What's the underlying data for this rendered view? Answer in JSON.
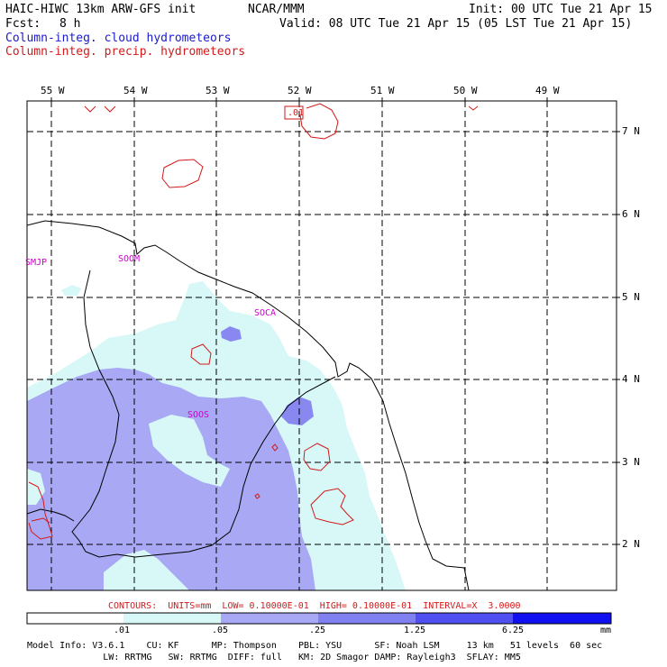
{
  "header": {
    "title": "HAIC-HIWC 13km ARW-GFS init",
    "org": "NCAR/MMM",
    "init": "Init: 00 UTC Tue 21 Apr 15",
    "fcst_label": "Fcst:",
    "fcst_value": "8 h",
    "valid": "Valid: 08 UTC Tue 21 Apr 15 (05 LST Tue 21 Apr 15)",
    "field1": "Column-integ. cloud hydrometeors",
    "field2": "Column-integ. precip. hydrometeors"
  },
  "axes": {
    "lon_labels": [
      "55 W",
      "54 W",
      "53 W",
      "52 W",
      "51 W",
      "50 W",
      "49 W"
    ],
    "lat_labels": [
      "7 N",
      "6 N",
      "5 N",
      "4 N",
      "3 N",
      "2 N"
    ]
  },
  "stations": [
    "SMJP",
    "SOOM",
    "SOCA",
    "SOOS"
  ],
  "contour_label": ".01",
  "contours_info": "CONTOURS:  UNITS=mm  LOW= 0.10000E-01  HIGH= 0.10000E-01  INTERVAL=X  3.0000",
  "colorbar": {
    "ticks": [
      ".01",
      ".05",
      ".25",
      "1.25",
      "6.25"
    ],
    "unit": "mm",
    "colors": [
      "#ffffff",
      "#d8f8f8",
      "#c4e0fa",
      "#a8a8f4",
      "#6c6cf0",
      "#4444f4",
      "#1010f0"
    ]
  },
  "model_info": {
    "line1": "Model Info: V3.6.1    CU: KF      MP: Thompson    PBL: YSU      SF: Noah LSM     13 km   51 levels  60 sec",
    "line2": "              LW: RRTMG   SW: RRTMG  DIFF: full   KM: 2D Smagor DAMP: Rayleigh3  SFLAY: MM5"
  },
  "colors": {
    "cloud_light": "#d8f8f8",
    "cloud_mid": "#a8a8f4",
    "cloud_dark": "#6c6cf0",
    "precip_contour": "#d21a1a",
    "station": "#cc00cc"
  }
}
